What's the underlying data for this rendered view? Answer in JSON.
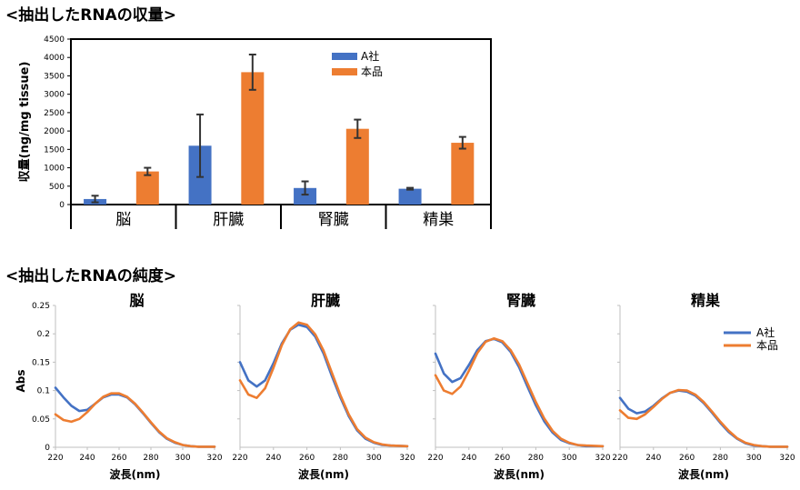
{
  "section_titles": {
    "yield": "<抽出したRNAの収量>",
    "purity": "<抽出したRNAの純度>"
  },
  "colors": {
    "companyA": "#4472C4",
    "product": "#ED7D31"
  },
  "chart_data": [
    {
      "type": "bar",
      "title": "",
      "categories": [
        "脳",
        "肝臓",
        "腎臓",
        "精巣"
      ],
      "ylabel": "収量(ng/mg tissue)",
      "xlabel": "",
      "ylim": [
        0,
        4500
      ],
      "yticks": [
        0,
        500,
        1000,
        1500,
        2000,
        2500,
        3000,
        3500,
        4000,
        4500
      ],
      "legend": "top-right",
      "grid": false,
      "series": [
        {
          "name": "A社",
          "values": [
            150,
            1600,
            450,
            430
          ],
          "errors": [
            90,
            850,
            180,
            25
          ]
        },
        {
          "name": "本品",
          "values": [
            900,
            3600,
            2060,
            1680
          ],
          "errors": [
            100,
            480,
            250,
            160
          ]
        }
      ]
    },
    {
      "type": "line",
      "title": "脳",
      "xlabel": "波長(nm)",
      "ylabel": "Abs",
      "xlim": [
        220,
        320
      ],
      "ylim": [
        0,
        0.25
      ],
      "xticks": [
        220,
        240,
        260,
        280,
        300,
        320
      ],
      "yticks": [
        0,
        0.05,
        0.1,
        0.15,
        0.2,
        0.25
      ],
      "x": [
        220,
        225,
        230,
        235,
        240,
        245,
        250,
        255,
        260,
        265,
        270,
        275,
        280,
        285,
        290,
        295,
        300,
        305,
        310,
        320
      ],
      "series": [
        {
          "name": "A社",
          "values": [
            0.105,
            0.088,
            0.073,
            0.064,
            0.066,
            0.077,
            0.088,
            0.093,
            0.093,
            0.088,
            0.076,
            0.06,
            0.043,
            0.027,
            0.015,
            0.008,
            0.004,
            0.002,
            0.001,
            0.001
          ]
        },
        {
          "name": "本品",
          "values": [
            0.058,
            0.048,
            0.045,
            0.05,
            0.062,
            0.077,
            0.089,
            0.095,
            0.095,
            0.089,
            0.077,
            0.061,
            0.044,
            0.028,
            0.016,
            0.009,
            0.004,
            0.002,
            0.001,
            0.001
          ]
        }
      ]
    },
    {
      "type": "line",
      "title": "肝臓",
      "xlabel": "波長(nm)",
      "ylabel": "",
      "xlim": [
        220,
        320
      ],
      "ylim": [
        0,
        0.25
      ],
      "xticks": [
        220,
        240,
        260,
        280,
        300,
        320
      ],
      "x": [
        220,
        225,
        230,
        235,
        240,
        245,
        250,
        255,
        260,
        265,
        270,
        275,
        280,
        285,
        290,
        295,
        300,
        305,
        310,
        320
      ],
      "series": [
        {
          "name": "A社",
          "values": [
            0.15,
            0.118,
            0.107,
            0.118,
            0.148,
            0.183,
            0.207,
            0.216,
            0.212,
            0.195,
            0.165,
            0.125,
            0.088,
            0.055,
            0.03,
            0.015,
            0.008,
            0.004,
            0.003,
            0.002
          ]
        },
        {
          "name": "本品",
          "values": [
            0.118,
            0.093,
            0.087,
            0.104,
            0.14,
            0.18,
            0.208,
            0.22,
            0.216,
            0.199,
            0.17,
            0.131,
            0.092,
            0.058,
            0.032,
            0.017,
            0.009,
            0.005,
            0.003,
            0.002
          ]
        }
      ]
    },
    {
      "type": "line",
      "title": "腎臓",
      "xlabel": "波長(nm)",
      "ylabel": "",
      "xlim": [
        220,
        320
      ],
      "ylim": [
        0,
        0.25
      ],
      "xticks": [
        220,
        240,
        260,
        280,
        300,
        320
      ],
      "x": [
        220,
        225,
        230,
        235,
        240,
        245,
        250,
        255,
        260,
        265,
        270,
        275,
        280,
        285,
        290,
        295,
        300,
        305,
        310,
        320
      ],
      "series": [
        {
          "name": "A社",
          "values": [
            0.165,
            0.13,
            0.115,
            0.122,
            0.145,
            0.171,
            0.187,
            0.191,
            0.185,
            0.168,
            0.141,
            0.107,
            0.074,
            0.046,
            0.026,
            0.013,
            0.007,
            0.004,
            0.002,
            0.002
          ]
        },
        {
          "name": "本品",
          "values": [
            0.127,
            0.1,
            0.094,
            0.107,
            0.135,
            0.166,
            0.186,
            0.192,
            0.187,
            0.171,
            0.146,
            0.113,
            0.08,
            0.051,
            0.029,
            0.015,
            0.008,
            0.004,
            0.003,
            0.002
          ]
        }
      ]
    },
    {
      "type": "line",
      "title": "精巣",
      "xlabel": "波長(nm)",
      "ylabel": "",
      "xlim": [
        220,
        320
      ],
      "ylim": [
        0,
        0.25
      ],
      "xticks": [
        220,
        240,
        260,
        280,
        300,
        320
      ],
      "x": [
        220,
        225,
        230,
        235,
        240,
        245,
        250,
        255,
        260,
        265,
        270,
        275,
        280,
        285,
        290,
        295,
        300,
        305,
        310,
        320
      ],
      "series": [
        {
          "name": "A社",
          "values": [
            0.087,
            0.068,
            0.06,
            0.063,
            0.073,
            0.086,
            0.096,
            0.1,
            0.098,
            0.091,
            0.078,
            0.061,
            0.043,
            0.027,
            0.015,
            0.007,
            0.003,
            0.002,
            0.001,
            0.001
          ]
        },
        {
          "name": "本品",
          "values": [
            0.065,
            0.052,
            0.05,
            0.058,
            0.071,
            0.085,
            0.096,
            0.101,
            0.1,
            0.093,
            0.08,
            0.063,
            0.045,
            0.029,
            0.016,
            0.008,
            0.004,
            0.002,
            0.001,
            0.001
          ]
        }
      ]
    }
  ]
}
